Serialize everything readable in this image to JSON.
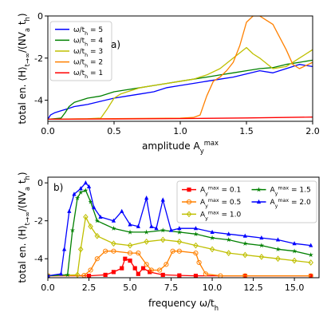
{
  "chart_data": [
    {
      "type": "line",
      "panel_label": "a)",
      "xlabel": "amplitude A_y^max",
      "ylabel": "total en. ⟨H⟩_{t→∞}/(NV_a t_h)",
      "xlim": [
        0.0,
        2.0
      ],
      "ylim": [
        -5.0,
        0.0
      ],
      "xticks": [
        "0.0",
        "0.5",
        "1.0",
        "1.5",
        "2.0"
      ],
      "yticks": [
        "-4",
        "-2",
        "0"
      ],
      "legend_position": "top-left",
      "series": [
        {
          "name": "ω/t_h = 5",
          "color": "#0000ff",
          "x": [
            0.0,
            0.02,
            0.05,
            0.1,
            0.15,
            0.2,
            0.25,
            0.3,
            0.4,
            0.5,
            0.6,
            0.7,
            0.8,
            0.9,
            1.0,
            1.1,
            1.2,
            1.3,
            1.4,
            1.5,
            1.6,
            1.7,
            1.8,
            1.9,
            2.0
          ],
          "y": [
            -4.9,
            -4.7,
            -4.6,
            -4.5,
            -4.4,
            -4.3,
            -4.25,
            -4.2,
            -4.05,
            -3.9,
            -3.8,
            -3.7,
            -3.6,
            -3.4,
            -3.3,
            -3.2,
            -3.1,
            -3.0,
            -2.9,
            -2.75,
            -2.6,
            -2.7,
            -2.5,
            -2.3,
            -2.4
          ]
        },
        {
          "name": "ω/t_h = 4",
          "color": "#008000",
          "x": [
            0.0,
            0.1,
            0.13,
            0.16,
            0.2,
            0.25,
            0.3,
            0.4,
            0.5,
            0.6,
            0.7,
            0.8,
            0.9,
            1.0,
            1.1,
            1.2,
            1.3,
            1.4,
            1.5,
            1.6,
            1.7,
            1.8,
            1.9,
            2.0
          ],
          "y": [
            -4.9,
            -4.85,
            -4.6,
            -4.3,
            -4.1,
            -4.0,
            -3.9,
            -3.8,
            -3.6,
            -3.5,
            -3.4,
            -3.3,
            -3.2,
            -3.1,
            -3.0,
            -2.9,
            -2.8,
            -2.7,
            -2.6,
            -2.5,
            -2.45,
            -2.3,
            -2.2,
            -2.1
          ]
        },
        {
          "name": "ω/t_h = 3",
          "color": "#bfbf00",
          "x": [
            0.0,
            0.3,
            0.4,
            0.45,
            0.5,
            0.55,
            0.6,
            0.7,
            0.8,
            0.9,
            1.0,
            1.1,
            1.2,
            1.3,
            1.4,
            1.5,
            1.55,
            1.6,
            1.7,
            1.8,
            1.9,
            2.0
          ],
          "y": [
            -4.9,
            -4.88,
            -4.85,
            -4.4,
            -3.9,
            -3.7,
            -3.6,
            -3.4,
            -3.3,
            -3.2,
            -3.1,
            -3.0,
            -2.8,
            -2.5,
            -2.0,
            -1.5,
            -1.8,
            -2.0,
            -2.5,
            -2.4,
            -2.0,
            -1.6
          ]
        },
        {
          "name": "ω/t_h = 2",
          "color": "#ff8000",
          "x": [
            0.0,
            1.0,
            1.1,
            1.15,
            1.2,
            1.25,
            1.3,
            1.35,
            1.4,
            1.45,
            1.5,
            1.55,
            1.6,
            1.65,
            1.7,
            1.75,
            1.8,
            1.85,
            1.9,
            2.0
          ],
          "y": [
            -4.9,
            -4.85,
            -4.82,
            -4.7,
            -3.8,
            -3.1,
            -2.9,
            -2.6,
            -2.2,
            -1.4,
            -0.3,
            0.0,
            0.0,
            -0.2,
            -0.4,
            -1.0,
            -1.6,
            -2.3,
            -2.5,
            -2.2
          ]
        },
        {
          "name": "ω/t_h = 1",
          "color": "#ff0000",
          "x": [
            0.0,
            0.5,
            1.0,
            1.5,
            2.0
          ],
          "y": [
            -4.9,
            -4.89,
            -4.87,
            -4.84,
            -4.8
          ]
        }
      ]
    },
    {
      "type": "line",
      "panel_label": "b)",
      "xlabel": "frequency ω/t_h",
      "ylabel": "total en. ⟨H⟩_{t→∞}/(NV_a t_h)",
      "xlim": [
        0.0,
        16.5
      ],
      "ylim": [
        -5.0,
        0.3
      ],
      "xticks": [
        "0.0",
        "2.5",
        "5.0",
        "7.5",
        "10.0",
        "12.5",
        "15.0"
      ],
      "yticks": [
        "-4",
        "-2",
        "0"
      ],
      "legend_position": "top-right",
      "series": [
        {
          "name": "A_y^max = 0.1",
          "color": "#ff0000",
          "marker": "s",
          "x": [
            0.0,
            2.5,
            3.5,
            4.0,
            4.5,
            4.7,
            5.0,
            5.3,
            5.5,
            5.8,
            6.2,
            7.0,
            8.0,
            9.0,
            12.0,
            16.0
          ],
          "y": [
            -4.9,
            -4.9,
            -4.85,
            -4.7,
            -4.5,
            -4.0,
            -4.1,
            -4.5,
            -4.8,
            -4.5,
            -4.7,
            -4.85,
            -4.88,
            -4.9,
            -4.9,
            -4.9
          ]
        },
        {
          "name": "A_y^max = 0.5",
          "color": "#ff8000",
          "marker": "o",
          "x": [
            0.0,
            2.2,
            2.6,
            3.0,
            3.5,
            4.0,
            5.0,
            5.5,
            6.0,
            6.3,
            6.8,
            7.2,
            7.6,
            8.0,
            9.0,
            9.2,
            9.6,
            10.5,
            12.0,
            16.0
          ],
          "y": [
            -4.9,
            -4.88,
            -4.6,
            -4.0,
            -3.6,
            -3.6,
            -3.7,
            -3.7,
            -4.3,
            -4.6,
            -4.6,
            -4.3,
            -3.6,
            -3.6,
            -3.7,
            -4.2,
            -4.8,
            -4.9,
            -4.9,
            -4.9
          ]
        },
        {
          "name": "A_y^max = 1.0",
          "color": "#bfbf00",
          "marker": "d",
          "x": [
            0.0,
            1.8,
            2.0,
            2.3,
            2.6,
            3.0,
            4.0,
            5.0,
            6.0,
            7.0,
            8.0,
            9.0,
            10.0,
            11.0,
            12.0,
            13.0,
            14.0,
            15.0,
            16.0
          ],
          "y": [
            -4.9,
            -4.85,
            -3.5,
            -1.8,
            -2.3,
            -2.8,
            -3.2,
            -3.3,
            -3.1,
            -3.0,
            -3.1,
            -3.3,
            -3.5,
            -3.7,
            -3.8,
            -3.9,
            -4.0,
            -4.1,
            -4.2
          ]
        },
        {
          "name": "A_y^max = 1.5",
          "color": "#008000",
          "marker": "*",
          "x": [
            0.0,
            1.2,
            1.5,
            1.8,
            2.0,
            2.3,
            2.6,
            3.0,
            4.0,
            5.0,
            6.0,
            7.0,
            8.0,
            9.0,
            10.0,
            11.0,
            12.0,
            13.0,
            14.0,
            15.0,
            16.0
          ],
          "y": [
            -4.9,
            -4.85,
            -2.5,
            -0.8,
            -0.5,
            -0.4,
            -1.0,
            -2.0,
            -2.4,
            -2.6,
            -2.6,
            -2.5,
            -2.6,
            -2.7,
            -2.9,
            -3.0,
            -3.2,
            -3.3,
            -3.5,
            -3.6,
            -3.8
          ]
        },
        {
          "name": "A_y^max = 2.0",
          "color": "#0000ff",
          "marker": "^",
          "x": [
            0.0,
            0.8,
            1.0,
            1.3,
            1.6,
            2.0,
            2.3,
            2.5,
            2.8,
            3.2,
            4.0,
            4.5,
            5.0,
            5.5,
            6.0,
            6.3,
            6.6,
            7.0,
            7.5,
            8.0,
            9.0,
            10.0,
            11.0,
            12.0,
            13.0,
            14.0,
            15.0,
            16.0
          ],
          "y": [
            -4.9,
            -4.8,
            -3.5,
            -1.5,
            -0.6,
            -0.3,
            0.0,
            -0.2,
            -1.3,
            -1.8,
            -2.0,
            -1.5,
            -2.2,
            -2.3,
            -0.8,
            -2.3,
            -2.4,
            -0.9,
            -2.5,
            -2.4,
            -2.4,
            -2.6,
            -2.7,
            -2.8,
            -2.9,
            -3.0,
            -3.2,
            -3.3
          ]
        }
      ]
    }
  ]
}
